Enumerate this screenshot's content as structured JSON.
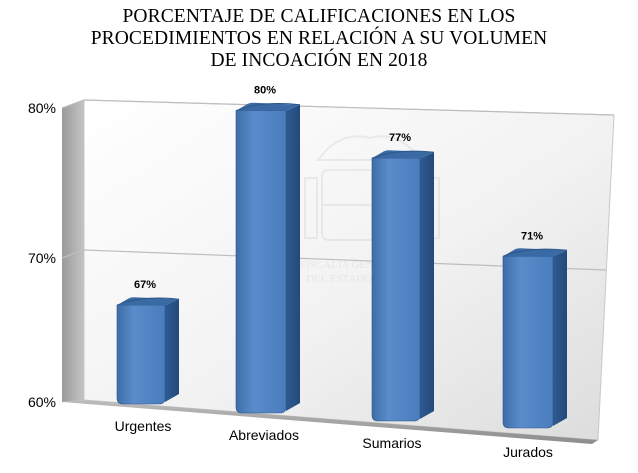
{
  "chart_data": {
    "type": "bar",
    "title_lines": [
      "PORCENTAJE DE CALIFICACIONES EN LOS",
      "PROCEDIMIENTOS EN RELACIÓN A SU VOLUMEN",
      "DE INCOACIÓN EN 2018"
    ],
    "categories": [
      "Urgentes",
      "Abreviados",
      "Sumarios",
      "Jurados"
    ],
    "values": [
      67,
      80,
      77,
      71
    ],
    "data_labels": [
      "67%",
      "80%",
      "77%",
      "71%"
    ],
    "yticks": [
      "60%",
      "70%",
      "80%"
    ],
    "ylim": [
      60,
      80
    ],
    "grid": true,
    "style": "3d",
    "bar_color": "#4f81bd",
    "bar_dark_color": "#2c5689",
    "watermark": "Escudo de España — FISCALÍA GENERAL DEL ESTADO"
  }
}
